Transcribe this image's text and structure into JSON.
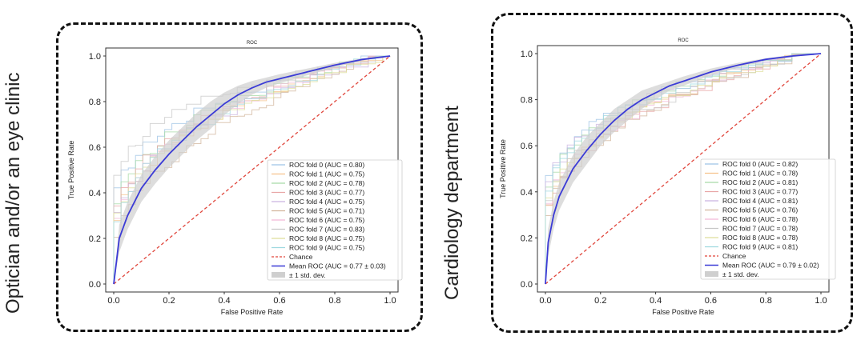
{
  "panels": [
    {
      "side_label": "Optician and/or an eye clinic",
      "chart_data": {
        "type": "line",
        "title": "ROC",
        "xlabel": "False Positive Rate",
        "ylabel": "True Positive Rate",
        "xlim": [
          0.0,
          1.0
        ],
        "ylim": [
          0.0,
          1.0
        ],
        "xticks": [
          "0.0",
          "0.2",
          "0.4",
          "0.6",
          "0.8",
          "1.0"
        ],
        "yticks": [
          "0.0",
          "0.2",
          "0.4",
          "0.6",
          "0.8",
          "1.0"
        ],
        "legend_location": "lower-right",
        "fold_curves": [
          {
            "name": "ROC fold 0 (AUC = 0.80)",
            "auc": 0.8
          },
          {
            "name": "ROC fold 1 (AUC = 0.75)",
            "auc": 0.75
          },
          {
            "name": "ROC fold 2 (AUC = 0.78)",
            "auc": 0.78
          },
          {
            "name": "ROC fold 3 (AUC = 0.77)",
            "auc": 0.77
          },
          {
            "name": "ROC fold 4 (AUC = 0.75)",
            "auc": 0.75
          },
          {
            "name": "ROC fold 5 (AUC = 0.71)",
            "auc": 0.71
          },
          {
            "name": "ROC fold 6 (AUC = 0.75)",
            "auc": 0.75
          },
          {
            "name": "ROC fold 7 (AUC = 0.83)",
            "auc": 0.83
          },
          {
            "name": "ROC fold 8 (AUC = 0.75)",
            "auc": 0.75
          },
          {
            "name": "ROC fold 9 (AUC = 0.75)",
            "auc": 0.75
          }
        ],
        "chance_label": "Chance",
        "mean_label": "Mean ROC (AUC = 0.77 ± 0.03)",
        "mean_auc": 0.77,
        "std_label": "± 1 std. dev.",
        "mean_curve": {
          "x": [
            0.0,
            0.02,
            0.05,
            0.1,
            0.15,
            0.2,
            0.25,
            0.3,
            0.35,
            0.4,
            0.45,
            0.5,
            0.55,
            0.6,
            0.7,
            0.8,
            0.9,
            1.0
          ],
          "y": [
            0.0,
            0.2,
            0.3,
            0.42,
            0.5,
            0.57,
            0.63,
            0.69,
            0.74,
            0.79,
            0.83,
            0.86,
            0.885,
            0.9,
            0.93,
            0.96,
            0.985,
            1.0
          ]
        },
        "std_band": {
          "lower": [
            0.0,
            0.14,
            0.24,
            0.36,
            0.44,
            0.51,
            0.57,
            0.63,
            0.68,
            0.74,
            0.79,
            0.83,
            0.86,
            0.88,
            0.915,
            0.95,
            0.98,
            1.0
          ],
          "upper": [
            0.0,
            0.26,
            0.36,
            0.48,
            0.56,
            0.63,
            0.69,
            0.75,
            0.8,
            0.84,
            0.87,
            0.89,
            0.905,
            0.92,
            0.945,
            0.97,
            0.99,
            1.0
          ]
        },
        "colors": {
          "mean": "#3b3bd6",
          "chance": "#e0463c",
          "band": "#cfcfcf",
          "folds": [
            "#9ec3e6",
            "#f6c28b",
            "#a6d9a6",
            "#e8a6a6",
            "#c9b3e0",
            "#d2b59c",
            "#f2b8d8",
            "#c7c7c7",
            "#dede9a",
            "#9ed9e0"
          ]
        }
      }
    },
    {
      "side_label": "Cardiology department",
      "chart_data": {
        "type": "line",
        "title": "ROC",
        "xlabel": "False Positive Rate",
        "ylabel": "True Positive Rate",
        "xlim": [
          0.0,
          1.0
        ],
        "ylim": [
          0.0,
          1.0
        ],
        "xticks": [
          "0.0",
          "0.2",
          "0.4",
          "0.6",
          "0.8",
          "1.0"
        ],
        "yticks": [
          "0.0",
          "0.2",
          "0.4",
          "0.6",
          "0.8",
          "1.0"
        ],
        "legend_location": "lower-right",
        "fold_curves": [
          {
            "name": "ROC fold 0 (AUC = 0.82)",
            "auc": 0.82
          },
          {
            "name": "ROC fold 1 (AUC = 0.78)",
            "auc": 0.78
          },
          {
            "name": "ROC fold 2 (AUC = 0.81)",
            "auc": 0.81
          },
          {
            "name": "ROC fold 3 (AUC = 0.77)",
            "auc": 0.77
          },
          {
            "name": "ROC fold 4 (AUC = 0.81)",
            "auc": 0.81
          },
          {
            "name": "ROC fold 5 (AUC = 0.76)",
            "auc": 0.76
          },
          {
            "name": "ROC fold 6 (AUC = 0.78)",
            "auc": 0.78
          },
          {
            "name": "ROC fold 7 (AUC = 0.78)",
            "auc": 0.78
          },
          {
            "name": "ROC fold 8 (AUC = 0.78)",
            "auc": 0.78
          },
          {
            "name": "ROC fold 9 (AUC = 0.81)",
            "auc": 0.81
          }
        ],
        "chance_label": "Chance",
        "mean_label": "Mean ROC (AUC = 0.79 ± 0.02)",
        "mean_auc": 0.79,
        "std_label": "± 1 std. dev.",
        "mean_curve": {
          "x": [
            0.0,
            0.01,
            0.03,
            0.05,
            0.1,
            0.15,
            0.2,
            0.25,
            0.3,
            0.35,
            0.4,
            0.45,
            0.5,
            0.6,
            0.7,
            0.8,
            0.9,
            1.0
          ],
          "y": [
            0.0,
            0.18,
            0.3,
            0.38,
            0.5,
            0.58,
            0.65,
            0.71,
            0.76,
            0.8,
            0.83,
            0.86,
            0.88,
            0.92,
            0.95,
            0.975,
            0.99,
            1.0
          ]
        },
        "std_band": {
          "lower": [
            0.0,
            0.12,
            0.24,
            0.32,
            0.44,
            0.52,
            0.6,
            0.66,
            0.71,
            0.76,
            0.8,
            0.84,
            0.86,
            0.905,
            0.94,
            0.97,
            0.985,
            1.0
          ],
          "upper": [
            0.0,
            0.24,
            0.36,
            0.44,
            0.56,
            0.64,
            0.7,
            0.76,
            0.8,
            0.84,
            0.86,
            0.88,
            0.9,
            0.935,
            0.96,
            0.98,
            0.995,
            1.0
          ]
        },
        "colors": {
          "mean": "#3b3bd6",
          "chance": "#e0463c",
          "band": "#cfcfcf",
          "folds": [
            "#9ec3e6",
            "#f6c28b",
            "#a6d9a6",
            "#e8a6a6",
            "#c9b3e0",
            "#d2b59c",
            "#f2b8d8",
            "#c7c7c7",
            "#dede9a",
            "#9ed9e0"
          ]
        }
      }
    }
  ]
}
